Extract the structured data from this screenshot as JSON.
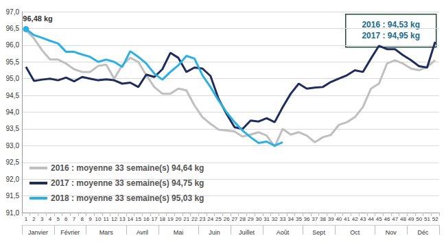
{
  "chart_data": {
    "type": "line",
    "categories": [
      1,
      2,
      3,
      4,
      5,
      6,
      7,
      8,
      9,
      10,
      11,
      12,
      13,
      14,
      15,
      16,
      17,
      18,
      19,
      20,
      21,
      22,
      23,
      24,
      25,
      26,
      27,
      28,
      29,
      30,
      31,
      32,
      33,
      34,
      35,
      36,
      37,
      38,
      39,
      40,
      41,
      42,
      43,
      44,
      45,
      46,
      47,
      48,
      49,
      50,
      51,
      52
    ],
    "month_groups": [
      {
        "label": "Janvier",
        "from": 1,
        "to": 4
      },
      {
        "label": "Février",
        "from": 5,
        "to": 8
      },
      {
        "label": "Mars",
        "from": 9,
        "to": 13
      },
      {
        "label": "Avril",
        "from": 14,
        "to": 17
      },
      {
        "label": "Mai",
        "from": 18,
        "to": 22
      },
      {
        "label": "Juin",
        "from": 23,
        "to": 26
      },
      {
        "label": "Juillet",
        "from": 27,
        "to": 30
      },
      {
        "label": "Août",
        "from": 31,
        "to": 35
      },
      {
        "label": "Sept",
        "from": 36,
        "to": 39
      },
      {
        "label": "Oct",
        "from": 40,
        "to": 44
      },
      {
        "label": "Nov",
        "from": 45,
        "to": 48
      },
      {
        "label": "Déc",
        "from": 49,
        "to": 52
      }
    ],
    "series": [
      {
        "name": "2016 : moyenne 33 semaine(s) 94,64 kg",
        "color": "#bfbfbf",
        "values": [
          96.45,
          96.2,
          95.85,
          95.57,
          95.57,
          95.45,
          95.28,
          95.2,
          95.2,
          95.38,
          95.42,
          95.0,
          95.4,
          95.62,
          95.5,
          95.1,
          94.75,
          94.55,
          94.55,
          94.7,
          94.65,
          94.2,
          93.85,
          93.65,
          93.48,
          93.45,
          93.42,
          93.27,
          93.33,
          93.4,
          93.3,
          92.97,
          93.5,
          93.33,
          93.4,
          93.3,
          93.1,
          93.25,
          93.32,
          93.62,
          93.7,
          93.85,
          94.15,
          94.7,
          94.85,
          95.45,
          95.55,
          95.45,
          95.3,
          95.25,
          95.35,
          95.55
        ]
      },
      {
        "name": "2017 : moyenne 33 semaine(s) 94,75 kg",
        "color": "#1f2d5c",
        "values": [
          95.35,
          94.93,
          94.97,
          95.0,
          94.95,
          95.03,
          94.92,
          95.05,
          95.0,
          94.95,
          94.98,
          94.95,
          94.85,
          94.88,
          94.75,
          95.12,
          95.05,
          95.28,
          95.77,
          95.62,
          95.2,
          95.33,
          95.3,
          95.08,
          94.4,
          93.95,
          93.55,
          93.5,
          93.75,
          93.72,
          93.82,
          93.7,
          94.15,
          94.55,
          94.85,
          94.7,
          94.73,
          94.75,
          94.9,
          95.0,
          95.1,
          95.25,
          95.2,
          95.6,
          95.98,
          95.88,
          95.88,
          95.7,
          95.55,
          95.37,
          95.33,
          96.1
        ]
      },
      {
        "name": "2018 : moyenne 33 semaine(s) 95,03 kg",
        "color": "#2ab0e4",
        "values": [
          96.48,
          96.3,
          96.22,
          96.13,
          96.05,
          95.8,
          95.8,
          95.72,
          95.65,
          95.5,
          95.57,
          95.5,
          95.35,
          95.82,
          95.65,
          95.45,
          95.15,
          94.97,
          95.2,
          95.4,
          95.68,
          95.6,
          95.1,
          94.75,
          94.35,
          94.0,
          93.7,
          93.45,
          93.25,
          93.08,
          93.12,
          93.0,
          93.1,
          null,
          null,
          null,
          null,
          null,
          null,
          null,
          null,
          null,
          null,
          null,
          null,
          null,
          null,
          null,
          null,
          null,
          null,
          null
        ]
      }
    ],
    "annotations": [
      {
        "text": "96,48 kg",
        "x": 1,
        "y": 96.48,
        "series": "2018 : moyenne 33 semaine(s) 95,03 kg"
      }
    ],
    "box_texts": [
      "2016 : 94,53 kg",
      "2017 : 94,95 kg"
    ],
    "ylim": [
      91,
      97
    ],
    "yticks": [
      {
        "value": 91,
        "label": "91,0"
      },
      {
        "value": 91.5,
        "label": "91,5"
      },
      {
        "value": 92,
        "label": "92,0"
      },
      {
        "value": 92.5,
        "label": "92,5"
      },
      {
        "value": 93,
        "label": "93,0"
      },
      {
        "value": 93.5,
        "label": "93,5"
      },
      {
        "value": 94,
        "label": "94,0"
      },
      {
        "value": 94.5,
        "label": "94,5"
      },
      {
        "value": 95,
        "label": "95,0"
      },
      {
        "value": 95.5,
        "label": "95,5"
      },
      {
        "value": 96,
        "label": "96,0"
      },
      {
        "value": 96.5,
        "label": "96,5"
      },
      {
        "value": 97,
        "label": "97,0"
      }
    ],
    "grid": true,
    "legend": "lower left"
  }
}
